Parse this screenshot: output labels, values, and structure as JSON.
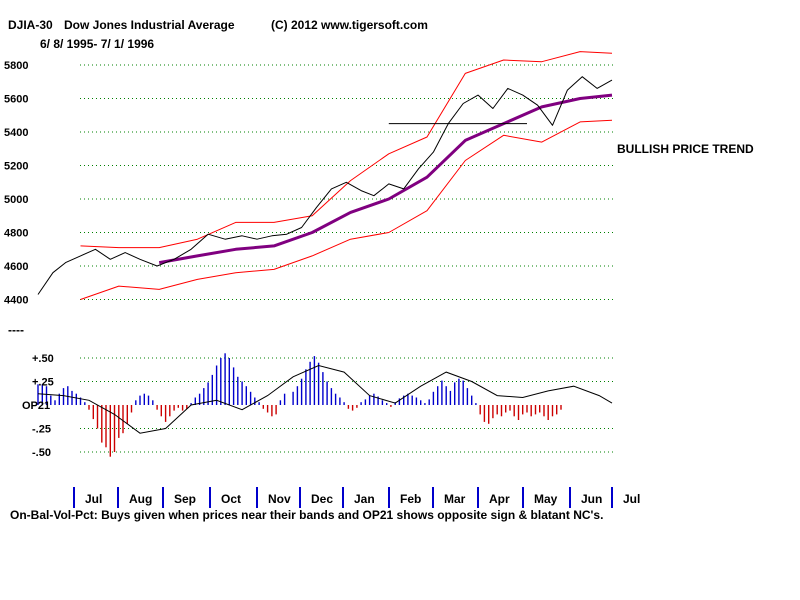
{
  "header": {
    "symbol": "DJIA-30",
    "name": "Dow Jones Industrial Average",
    "copyright": "(C) 2012 www.tigersoft.com",
    "date_range": "6/ 8/ 1995- 7/ 1/ 1996"
  },
  "annotation": "BULLISH PRICE TREND",
  "separator": "----",
  "footnote": "On-Bal-Vol-Pct: Buys given when prices near their bands and OP21 shows opposite sign & blatant NC's.",
  "colors": {
    "price": "#000000",
    "bands": "#ff0000",
    "moving_average": "#800080",
    "osc_positive": "#0000cc",
    "osc_negative": "#cc0000",
    "grid": "#008000",
    "month_marker": "#0000cc"
  },
  "chart_data": [
    {
      "type": "line",
      "title": "Dow Jones Industrial Average",
      "ylim": [
        4350,
        5900
      ],
      "yticks": [
        4400,
        4600,
        4800,
        5000,
        5200,
        5400,
        5600,
        5800
      ],
      "ytick_labels": [
        "4400",
        "4600",
        "4800",
        "5000",
        "5200",
        "5400",
        "5600",
        "5800"
      ],
      "months": [
        "Jul",
        "Aug",
        "Sep",
        "Oct",
        "Nov",
        "Dec",
        "Jan",
        "Feb",
        "Mar",
        "Apr",
        "May",
        "Jun",
        "Jul"
      ],
      "x_index_range": [
        0,
        270
      ],
      "series": [
        {
          "name": "DJIA",
          "x": [
            0,
            7,
            13,
            20,
            27,
            34,
            41,
            48,
            56,
            64,
            72,
            80,
            88,
            96,
            103,
            110,
            117,
            124,
            131,
            138,
            145,
            152,
            158,
            165,
            172,
            179,
            186,
            193,
            200,
            207,
            214,
            221,
            228,
            235,
            242,
            249,
            256,
            263,
            270
          ],
          "values": [
            4430,
            4560,
            4620,
            4660,
            4700,
            4640,
            4680,
            4640,
            4600,
            4640,
            4700,
            4790,
            4760,
            4780,
            4760,
            4780,
            4790,
            4830,
            4950,
            5060,
            5100,
            5050,
            5020,
            5090,
            5060,
            5180,
            5280,
            5450,
            5570,
            5620,
            5540,
            5660,
            5620,
            5560,
            5440,
            5650,
            5730,
            5660,
            5710
          ]
        },
        {
          "name": "Moving average",
          "x": [
            57,
            75,
            93,
            111,
            129,
            147,
            165,
            183,
            201,
            219,
            237,
            255,
            270
          ],
          "values": [
            4620,
            4660,
            4700,
            4720,
            4800,
            4920,
            5000,
            5130,
            5350,
            5450,
            5550,
            5600,
            5620
          ]
        },
        {
          "name": "Upper band",
          "x": [
            20,
            38,
            57,
            75,
            93,
            111,
            129,
            147,
            165,
            183,
            201,
            219,
            237,
            255,
            270
          ],
          "values": [
            4720,
            4710,
            4710,
            4760,
            4860,
            4860,
            4900,
            5110,
            5270,
            5370,
            5750,
            5830,
            5820,
            5880,
            5870
          ]
        },
        {
          "name": "Lower band",
          "x": [
            20,
            38,
            57,
            75,
            93,
            111,
            129,
            147,
            165,
            183,
            201,
            219,
            237,
            255,
            270
          ],
          "values": [
            4400,
            4480,
            4460,
            4520,
            4560,
            4580,
            4660,
            4760,
            4800,
            4930,
            5230,
            5380,
            5340,
            5460,
            5470
          ]
        },
        {
          "name": "Support line",
          "x": [
            165,
            230
          ],
          "values": [
            5450,
            5450
          ]
        }
      ]
    },
    {
      "type": "bar",
      "title": "OP21 On-Bal-Vol-Pct",
      "ylabel": "OP21",
      "ylim": [
        -0.55,
        0.65
      ],
      "yticks": [
        0.5,
        0.25,
        0,
        -0.25,
        -0.5
      ],
      "ytick_labels": [
        "+.50",
        "+.25",
        "OP21",
        "-.25",
        "-.50"
      ],
      "bars": [
        {
          "x": 0,
          "values": [
            0.22,
            0.22,
            0.2,
            0.1,
            0.05,
            0.12,
            0.18,
            0.2,
            0.15,
            0.12,
            0.08,
            0.03,
            -0.05,
            -0.15,
            -0.25,
            -0.4,
            -0.45,
            -0.55,
            -0.5,
            -0.35,
            -0.3,
            -0.2,
            -0.08,
            0.05,
            0.1,
            0.12,
            0.1,
            0.05,
            -0.05,
            -0.12,
            -0.18,
            -0.12,
            -0.06,
            -0.03,
            -0.06,
            -0.04,
            0.02,
            0.08,
            0.12,
            0.18,
            0.24,
            0.32,
            0.42,
            0.5,
            0.55,
            0.5,
            0.4,
            0.3,
            0.25,
            0.2,
            0.14,
            0.08,
            0.03,
            -0.04,
            -0.08,
            -0.12,
            -0.1,
            0.05,
            0.12
          ]
        },
        {
          "x": 120,
          "values": [
            0.14,
            0.2,
            0.28,
            0.38,
            0.46,
            0.52,
            0.45,
            0.35,
            0.25,
            0.18,
            0.12,
            0.08,
            0.03,
            -0.04,
            -0.06,
            -0.03,
            0.03,
            0.06,
            0.1,
            0.12,
            0.09,
            0.05,
            0.02,
            -0.02,
            0.03,
            0.07,
            0.1,
            0.12,
            0.1,
            0.08,
            0.05,
            0.02,
            0.06,
            0.14,
            0.2,
            0.26,
            0.2,
            0.15,
            0.24,
            0.28,
            0.26,
            0.18,
            0.1,
            0.02,
            -0.1,
            -0.18,
            -0.2,
            -0.14,
            -0.1,
            -0.12,
            -0.08,
            -0.06,
            -0.12,
            -0.16,
            -0.1,
            -0.08,
            -0.12,
            -0.1,
            -0.08,
            -0.12,
            -0.16,
            -0.12,
            -0.1,
            -0.05
          ]
        }
      ],
      "signal_line": {
        "x": [
          0,
          12,
          24,
          36,
          48,
          60,
          72,
          84,
          96,
          108,
          120,
          132,
          144,
          156,
          168,
          180,
          192,
          204,
          216,
          228,
          240,
          252,
          264,
          270
        ],
        "values": [
          0.12,
          0.1,
          0.05,
          -0.1,
          -0.3,
          -0.25,
          0.0,
          0.05,
          -0.05,
          0.1,
          0.3,
          0.42,
          0.35,
          0.1,
          0.02,
          0.2,
          0.35,
          0.25,
          0.1,
          0.08,
          0.15,
          0.2,
          0.1,
          0.02
        ]
      }
    }
  ]
}
